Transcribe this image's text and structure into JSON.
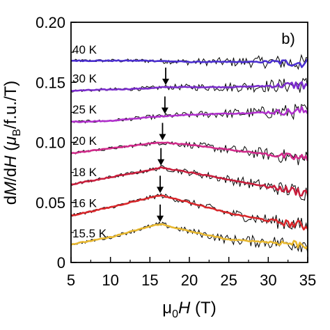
{
  "chart_data": {
    "type": "line",
    "panel_label": "b)",
    "xlabel_parts": {
      "prefix": "μ",
      "sub": "0",
      "italic": "H",
      "suffix": " (T)"
    },
    "ylabel_parts": {
      "a": "d",
      "b": "M",
      "c": "/d",
      "d": "H",
      "e": " (",
      "f": "μ",
      "g": "B",
      "h": "/f.u./T)"
    },
    "xlim": [
      5,
      35
    ],
    "ylim": [
      0,
      0.2
    ],
    "x_ticks": [
      "5",
      "10",
      "15",
      "20",
      "25",
      "30",
      "35"
    ],
    "y_ticks": [
      "0",
      "0.05",
      "0.10",
      "0.15",
      "0.20"
    ],
    "x_tick_values": [
      5,
      10,
      15,
      20,
      25,
      30,
      35
    ],
    "y_tick_values": [
      0,
      0.05,
      0.1,
      0.15,
      0.2
    ],
    "raw_data_color": "#000000",
    "series": [
      {
        "name": "40 K",
        "color": "#4b2fd0",
        "end_color": "#5a2de0",
        "base": 0.167,
        "peak": null,
        "x": [
          5,
          10,
          15,
          20,
          25,
          30,
          35
        ],
        "y": [
          0.168,
          0.168,
          0.168,
          0.167,
          0.167,
          0.167,
          0.166
        ]
      },
      {
        "name": "30 K",
        "color": "#7a2ccc",
        "end_color": "#8b2ee0",
        "base": 0.143,
        "peak": 17.0,
        "x": [
          5,
          10,
          15,
          17,
          20,
          25,
          30,
          35
        ],
        "y": [
          0.143,
          0.144,
          0.145,
          0.146,
          0.146,
          0.146,
          0.147,
          0.148
        ]
      },
      {
        "name": "25 K",
        "color": "#b030cc",
        "end_color": "#c03ad8",
        "base": 0.117,
        "peak": 16.9,
        "x": [
          5,
          10,
          15,
          16.9,
          20,
          25,
          30,
          35
        ],
        "y": [
          0.117,
          0.118,
          0.121,
          0.122,
          0.123,
          0.124,
          0.125,
          0.126
        ]
      },
      {
        "name": "20 K",
        "color": "#d02a8a",
        "end_color": "#e83ca0",
        "base": 0.091,
        "peak": 16.6,
        "x": [
          5,
          10,
          15,
          16.6,
          20,
          25,
          30,
          35
        ],
        "y": [
          0.091,
          0.095,
          0.099,
          0.1,
          0.098,
          0.094,
          0.09,
          0.086
        ]
      },
      {
        "name": "18 K",
        "color": "#c81e3c",
        "end_color": "#c81e3c",
        "base": 0.065,
        "peak": 16.4,
        "x": [
          5,
          10,
          15,
          16.4,
          20,
          25,
          30,
          35
        ],
        "y": [
          0.065,
          0.071,
          0.077,
          0.079,
          0.075,
          0.069,
          0.063,
          0.058
        ]
      },
      {
        "name": "16 K",
        "color": "#d8262a",
        "end_color": "#d8262a",
        "base": 0.039,
        "peak": 16.3,
        "x": [
          5,
          10,
          15,
          16.3,
          20,
          25,
          30,
          35
        ],
        "y": [
          0.039,
          0.046,
          0.054,
          0.056,
          0.05,
          0.041,
          0.035,
          0.03
        ]
      },
      {
        "name": "15.5 K",
        "color": "#e8b830",
        "end_color": "#e8b830",
        "base": 0.014,
        "peak": 16.3,
        "x": [
          5,
          10,
          15,
          16.3,
          20,
          25,
          30,
          35
        ],
        "y": [
          0.015,
          0.021,
          0.03,
          0.032,
          0.026,
          0.019,
          0.017,
          0.015
        ]
      }
    ]
  }
}
